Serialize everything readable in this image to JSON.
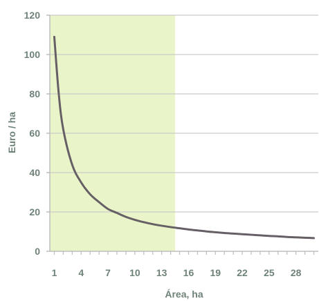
{
  "colors": {
    "text": "#6e8278",
    "gridline": "#c9c9c9",
    "axis": "#bdbdbd",
    "highlight": "#e9f5c8",
    "curve": "#666066",
    "background": "#ffffff"
  },
  "chart_data": {
    "type": "line",
    "title": "",
    "xlabel": "Área, ha",
    "ylabel": "Euro / ha",
    "ylim": [
      0,
      120
    ],
    "xlim": [
      0.5,
      30.5
    ],
    "y_ticks": [
      0,
      20,
      40,
      60,
      80,
      100,
      120
    ],
    "x_ticks": [
      1,
      4,
      7,
      10,
      13,
      16,
      19,
      22,
      25,
      28
    ],
    "grid": true,
    "legend": "none",
    "highlight_region": {
      "x_start": 0.5,
      "x_end": 14.5
    },
    "series": [
      {
        "x": [
          1,
          1.5,
          2,
          3,
          4,
          5,
          6,
          7,
          8,
          9,
          10,
          11,
          12,
          13,
          14,
          15,
          16,
          17,
          18,
          19,
          20,
          21,
          22,
          23,
          24,
          25,
          26,
          27,
          28,
          29,
          30
        ],
        "y": [
          109,
          80,
          62,
          44,
          35,
          29,
          25,
          21.5,
          19.5,
          17.5,
          16,
          14.8,
          13.8,
          13,
          12.3,
          11.7,
          11.1,
          10.6,
          10.1,
          9.7,
          9.3,
          9,
          8.7,
          8.4,
          8.1,
          7.8,
          7.6,
          7.3,
          7.1,
          6.9,
          6.7
        ]
      }
    ]
  }
}
